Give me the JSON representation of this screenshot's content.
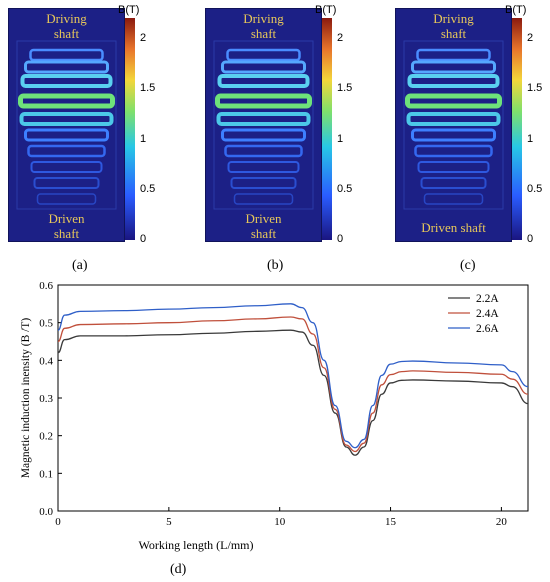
{
  "field_maps": [
    {
      "label": "(a)",
      "top_text": [
        "Driving",
        "shaft"
      ],
      "bottom_text": [
        "Driven",
        "shaft"
      ]
    },
    {
      "label": "(b)",
      "top_text": [
        "Driving",
        "shaft"
      ],
      "bottom_text": [
        "Driven",
        "shaft"
      ]
    },
    {
      "label": "(c)",
      "top_text": [
        "Driving",
        "shaft"
      ],
      "bottom_text": [
        "Driven shaft"
      ]
    }
  ],
  "colorbar": {
    "title": "B(T)",
    "ticks": [
      "2",
      "1.5",
      "1",
      "0.5",
      "0"
    ],
    "range": [
      0,
      2.2
    ]
  },
  "colors": {
    "field_bg": "#1c2086",
    "shaft_text": "#e8c85a"
  },
  "chart_label": "(d)",
  "chart_data": {
    "type": "line",
    "xlabel": "Working length (L/mm)",
    "ylabel": "Magnetic induction inensity (B /T)",
    "xlim": [
      0,
      21.2
    ],
    "ylim": [
      0,
      0.6
    ],
    "xticks": [
      0,
      5,
      10,
      15,
      20
    ],
    "yticks": [
      0,
      0.1,
      0.2,
      0.3,
      0.4,
      0.5,
      0.6
    ],
    "legend_position": "top-right",
    "x": [
      0,
      0.3,
      1,
      3,
      5,
      7,
      9,
      10.5,
      11,
      11.5,
      12,
      12.5,
      13,
      13.4,
      13.8,
      14.2,
      14.6,
      15,
      15.5,
      16,
      18,
      20,
      20.5,
      21.2
    ],
    "series": [
      {
        "name": "2.2A",
        "color": "#3a3a3a",
        "values": [
          0.42,
          0.455,
          0.465,
          0.465,
          0.468,
          0.472,
          0.477,
          0.48,
          0.475,
          0.44,
          0.36,
          0.26,
          0.17,
          0.148,
          0.17,
          0.24,
          0.31,
          0.34,
          0.347,
          0.348,
          0.345,
          0.34,
          0.33,
          0.285
        ]
      },
      {
        "name": "2.4A",
        "color": "#c0503c",
        "values": [
          0.45,
          0.485,
          0.495,
          0.497,
          0.5,
          0.505,
          0.51,
          0.515,
          0.51,
          0.47,
          0.38,
          0.27,
          0.175,
          0.158,
          0.18,
          0.26,
          0.335,
          0.362,
          0.37,
          0.372,
          0.368,
          0.363,
          0.35,
          0.31
        ]
      },
      {
        "name": "2.6A",
        "color": "#2f5fc8",
        "values": [
          0.48,
          0.52,
          0.53,
          0.532,
          0.536,
          0.54,
          0.545,
          0.55,
          0.54,
          0.5,
          0.4,
          0.28,
          0.185,
          0.168,
          0.19,
          0.28,
          0.36,
          0.39,
          0.397,
          0.398,
          0.393,
          0.388,
          0.37,
          0.33
        ]
      }
    ]
  }
}
